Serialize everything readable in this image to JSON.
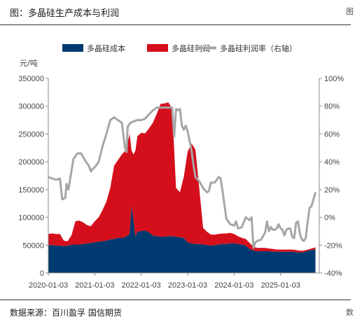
{
  "header": {
    "title": "图：多晶硅生产成本与利润",
    "edge_glyph": "图"
  },
  "footer": {
    "source": "数据来源：百川盈孚 国信期货",
    "edge_glyph": "数"
  },
  "chart_data": {
    "type": "area",
    "title": "",
    "xlabel": "",
    "ylabel": "元/吨",
    "ylabel_right": "",
    "ylim": [
      0,
      350000
    ],
    "ylim_right": [
      -40,
      100
    ],
    "yticks": [
      0,
      50000,
      100000,
      150000,
      200000,
      250000,
      300000,
      350000
    ],
    "yticks_labels": [
      "0",
      "50000",
      "100000",
      "150000",
      "200000",
      "250000",
      "300000",
      "350000"
    ],
    "yticks_right": [
      -40,
      -20,
      0,
      20,
      40,
      60,
      80,
      100
    ],
    "yticks_right_labels": [
      "-40%",
      "-20%",
      "0%",
      "20%",
      "40%",
      "60%",
      "80%",
      "100%"
    ],
    "xticks_labels": [
      "2020-01-03",
      "2021-01-03",
      "2022-01-03",
      "2023-01-03",
      "2024-01-03",
      "2025-01-03"
    ],
    "x_months": [
      0,
      12,
      24,
      36,
      48,
      60
    ],
    "x_range_months": [
      0,
      70
    ],
    "legend_position": "top",
    "colors": {
      "cost": "#003a70",
      "profit": "#d40f1b",
      "rate": "#a6a6a6"
    },
    "series": [
      {
        "name": "多晶硅成本",
        "style": "stacked-area",
        "points": [
          [
            0,
            50000
          ],
          [
            1,
            50000
          ],
          [
            2,
            49000
          ],
          [
            3,
            49000
          ],
          [
            4,
            48000
          ],
          [
            5,
            49000
          ],
          [
            6,
            51000
          ],
          [
            7,
            51000
          ],
          [
            8,
            51000
          ],
          [
            9,
            52000
          ],
          [
            10,
            53000
          ],
          [
            11,
            54000
          ],
          [
            12,
            55000
          ],
          [
            13,
            56000
          ],
          [
            14,
            57000
          ],
          [
            15,
            58000
          ],
          [
            16,
            60000
          ],
          [
            17,
            61000
          ],
          [
            18,
            63000
          ],
          [
            19,
            63000
          ],
          [
            20,
            65000
          ],
          [
            21,
            70000
          ],
          [
            21.5,
            120000
          ],
          [
            22,
            95000
          ],
          [
            22.5,
            65000
          ],
          [
            23,
            74000
          ],
          [
            24,
            75000
          ],
          [
            25,
            76000
          ],
          [
            26,
            73000
          ],
          [
            27,
            67000
          ],
          [
            28,
            66000
          ],
          [
            29,
            65000
          ],
          [
            30,
            65000
          ],
          [
            31,
            66000
          ],
          [
            32,
            66000
          ],
          [
            33,
            65000
          ],
          [
            34,
            64000
          ],
          [
            35,
            63000
          ],
          [
            36,
            55000
          ],
          [
            37,
            53000
          ],
          [
            38,
            52000
          ],
          [
            39,
            52000
          ],
          [
            40,
            51000
          ],
          [
            41,
            50000
          ],
          [
            42,
            49000
          ],
          [
            43,
            50000
          ],
          [
            44,
            51000
          ],
          [
            45,
            52000
          ],
          [
            46,
            52000
          ],
          [
            47,
            53000
          ],
          [
            48,
            53000
          ],
          [
            49,
            52000
          ],
          [
            50,
            51000
          ],
          [
            51,
            49000
          ],
          [
            52,
            43000
          ],
          [
            53,
            40000
          ],
          [
            54,
            39000
          ],
          [
            55,
            39000
          ],
          [
            56,
            39000
          ],
          [
            57,
            39000
          ],
          [
            58,
            38000
          ],
          [
            59,
            38000
          ],
          [
            60,
            38000
          ],
          [
            61,
            38000
          ],
          [
            62,
            38000
          ],
          [
            63,
            38000
          ],
          [
            64,
            37000
          ],
          [
            65,
            37000
          ],
          [
            66,
            37000
          ],
          [
            67,
            40000
          ],
          [
            68,
            41000
          ],
          [
            69,
            42000
          ]
        ]
      },
      {
        "name": "多晶硅利润",
        "style": "stacked-area",
        "points": [
          [
            0,
            20000
          ],
          [
            1,
            21000
          ],
          [
            2,
            21000
          ],
          [
            3,
            21000
          ],
          [
            4,
            10000
          ],
          [
            5,
            8000
          ],
          [
            6,
            17000
          ],
          [
            7,
            42000
          ],
          [
            8,
            43000
          ],
          [
            9,
            39000
          ],
          [
            10,
            33000
          ],
          [
            11,
            30000
          ],
          [
            12,
            38000
          ],
          [
            13,
            44000
          ],
          [
            14,
            56000
          ],
          [
            15,
            70000
          ],
          [
            16,
            93000
          ],
          [
            17,
            132000
          ],
          [
            18,
            140000
          ],
          [
            19,
            150000
          ],
          [
            20,
            156000
          ],
          [
            21,
            180000
          ],
          [
            21.5,
            100000
          ],
          [
            22,
            118000
          ],
          [
            22.5,
            155000
          ],
          [
            23,
            172000
          ],
          [
            24,
            177000
          ],
          [
            25,
            175000
          ],
          [
            26,
            187000
          ],
          [
            27,
            203000
          ],
          [
            28,
            220000
          ],
          [
            29,
            239000
          ],
          [
            30,
            240000
          ],
          [
            31,
            241000
          ],
          [
            32,
            230000
          ],
          [
            33,
            88000
          ],
          [
            34,
            81000
          ],
          [
            35,
            110000
          ],
          [
            36,
            163000
          ],
          [
            37,
            180000
          ],
          [
            38,
            170000
          ],
          [
            39,
            100000
          ],
          [
            40,
            30000
          ],
          [
            41,
            24000
          ],
          [
            42,
            20000
          ],
          [
            43,
            19000
          ],
          [
            44,
            19000
          ],
          [
            45,
            19000
          ],
          [
            46,
            19000
          ],
          [
            47,
            19000
          ],
          [
            48,
            17000
          ],
          [
            49,
            14000
          ],
          [
            50,
            12000
          ],
          [
            51,
            12000
          ],
          [
            52,
            11000
          ],
          [
            53,
            7000
          ],
          [
            54,
            6000
          ],
          [
            55,
            6000
          ],
          [
            56,
            6000
          ],
          [
            57,
            5000
          ],
          [
            58,
            5000
          ],
          [
            59,
            4000
          ],
          [
            60,
            4000
          ],
          [
            61,
            4000
          ],
          [
            62,
            4000
          ],
          [
            63,
            4000
          ],
          [
            64,
            4000
          ],
          [
            65,
            3000
          ],
          [
            66,
            3000
          ],
          [
            67,
            2000
          ],
          [
            68,
            3000
          ],
          [
            69,
            4000
          ]
        ]
      },
      {
        "name": "多晶硅利润率（右轴）",
        "style": "line",
        "axis": "right",
        "points": [
          [
            0,
            29
          ],
          [
            1,
            28
          ],
          [
            2,
            27
          ],
          [
            3,
            28
          ],
          [
            3.6,
            13
          ],
          [
            4.4,
            14
          ],
          [
            4.7,
            24
          ],
          [
            5.2,
            20
          ],
          [
            6.5,
            42
          ],
          [
            7.5,
            46
          ],
          [
            8.5,
            46
          ],
          [
            9.5,
            41
          ],
          [
            10.5,
            37
          ],
          [
            11,
            33
          ],
          [
            11.5,
            35
          ],
          [
            12,
            36
          ],
          [
            13,
            40
          ],
          [
            14,
            51
          ],
          [
            15,
            60
          ],
          [
            16,
            70
          ],
          [
            17,
            72
          ],
          [
            18,
            70
          ],
          [
            19,
            68
          ],
          [
            19.8,
            50
          ],
          [
            20.2,
            47
          ],
          [
            20.5,
            65
          ],
          [
            21.2,
            68
          ],
          [
            22,
            69
          ],
          [
            23,
            70
          ],
          [
            24,
            70
          ],
          [
            25,
            71
          ],
          [
            26,
            74
          ],
          [
            27,
            77
          ],
          [
            28,
            79
          ],
          [
            29,
            79
          ],
          [
            30,
            79
          ],
          [
            31,
            79
          ],
          [
            32,
            79
          ],
          [
            32.5,
            58
          ],
          [
            33,
            78
          ],
          [
            33.5,
            77
          ],
          [
            34,
            78
          ],
          [
            34.5,
            66
          ],
          [
            35,
            63
          ],
          [
            35.5,
            66
          ],
          [
            36,
            62
          ],
          [
            37,
            48
          ],
          [
            37.5,
            38
          ],
          [
            38,
            29
          ],
          [
            39,
            26
          ],
          [
            40,
            21
          ],
          [
            41,
            18
          ],
          [
            41.5,
            19
          ],
          [
            42,
            25
          ],
          [
            43,
            25
          ],
          [
            43.5,
            27
          ],
          [
            44,
            29
          ],
          [
            44.5,
            28
          ],
          [
            45,
            19
          ],
          [
            46,
            -1
          ],
          [
            47,
            -5
          ],
          [
            48,
            -6
          ],
          [
            48.5,
            -3
          ],
          [
            49,
            -8
          ],
          [
            50,
            -7
          ],
          [
            51,
            0
          ],
          [
            52,
            -2
          ],
          [
            52.5,
            0
          ],
          [
            53,
            -22
          ],
          [
            53.5,
            -18
          ],
          [
            54,
            -17
          ],
          [
            55,
            -16
          ],
          [
            56,
            -11
          ],
          [
            56.5,
            -3
          ],
          [
            57,
            -10
          ],
          [
            57.5,
            -7
          ],
          [
            58,
            -9
          ],
          [
            58.5,
            -9
          ],
          [
            59,
            -8
          ],
          [
            59.5,
            -5
          ],
          [
            60,
            -8
          ],
          [
            60.5,
            -9
          ],
          [
            61,
            -13
          ],
          [
            61.5,
            -9
          ],
          [
            62,
            -8
          ],
          [
            62.5,
            -8
          ],
          [
            63,
            -14
          ],
          [
            63.5,
            -15
          ],
          [
            64,
            -4
          ],
          [
            64.5,
            -3
          ],
          [
            65,
            -12
          ],
          [
            65.5,
            -16
          ],
          [
            66,
            -17
          ],
          [
            66.5,
            -15
          ],
          [
            67,
            -3
          ],
          [
            67.5,
            7
          ],
          [
            68,
            8
          ],
          [
            68.5,
            13
          ],
          [
            69,
            18
          ]
        ]
      }
    ]
  }
}
